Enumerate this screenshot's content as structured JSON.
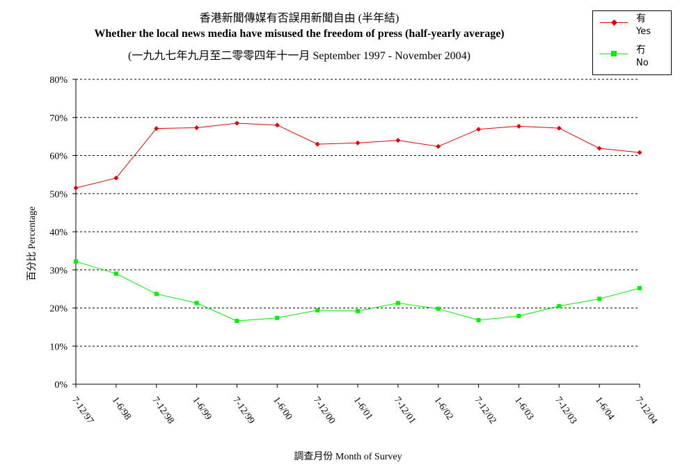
{
  "chart_data": {
    "type": "line",
    "title": "香港新聞傳媒有否誤用新聞自由 (半年結)",
    "subtitle": "Whether the local news media have misused the freedom of press  (half-yearly average)",
    "subtitle2": "(一九九七年九月至二零零四年十一月 September 1997 - November 2004)",
    "xlabel": "調查月份 Month of Survey",
    "ylabel": "百分比 Percentage",
    "categories": [
      "7-12/97",
      "1-6/98",
      "7-12/98",
      "1-6/99",
      "7-12/99",
      "1-6/00",
      "7-12/00",
      "1-6/01",
      "7-12/01",
      "1-6/02",
      "7-12/02",
      "1-6/03",
      "7-12/03",
      "1-6/04",
      "7-12/04"
    ],
    "yticks": [
      "0%",
      "10%",
      "20%",
      "30%",
      "40%",
      "50%",
      "60%",
      "70%",
      "80%"
    ],
    "ylim": [
      0,
      80
    ],
    "grid": true,
    "legend_position": "top-right",
    "series": [
      {
        "name": "有",
        "name_en": "Yes",
        "color": "#e00000",
        "marker": "diamond",
        "values": [
          51.5,
          54.1,
          67.1,
          67.3,
          68.5,
          68.0,
          63.0,
          63.3,
          64.0,
          62.4,
          66.9,
          67.7,
          67.2,
          61.9,
          60.8
        ]
      },
      {
        "name": "冇",
        "name_en": "No",
        "color": "#00ee00",
        "marker": "square",
        "values": [
          32.2,
          29.0,
          23.7,
          21.3,
          16.6,
          17.4,
          19.4,
          19.2,
          21.3,
          19.8,
          16.8,
          17.9,
          20.5,
          22.4,
          25.2
        ]
      }
    ]
  }
}
